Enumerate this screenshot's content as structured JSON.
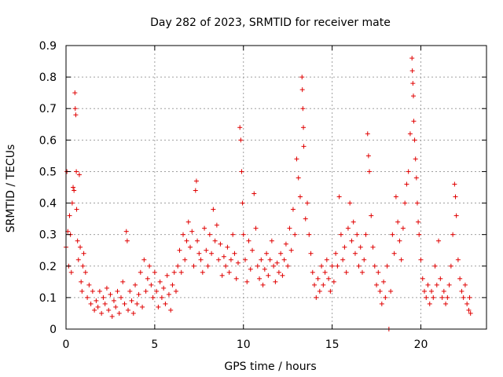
{
  "chart_data": {
    "type": "scatter",
    "title": "Day 282 of 2023, SRMTID for receiver mate",
    "xlabel": "GPS time / hours",
    "ylabel": "SRMTID / TECUs",
    "xlim": [
      0,
      23.7
    ],
    "ylim": [
      0,
      0.9
    ],
    "xticks": [
      0,
      5,
      10,
      15,
      20
    ],
    "yticks": [
      0,
      0.1,
      0.2,
      0.3,
      0.4,
      0.5,
      0.6,
      0.7,
      0.8,
      0.9
    ],
    "xtick_labels": [
      "0",
      "5",
      "10",
      "15",
      "20"
    ],
    "ytick_labels": [
      "0",
      "0.1",
      "0.2",
      "0.3",
      "0.4",
      "0.5",
      "0.6",
      "0.7",
      "0.8",
      "0.9"
    ],
    "grid": true,
    "marker": "+",
    "color": "#e00000",
    "series": [
      {
        "name": "SRMTID",
        "points": [
          [
            0.0,
            0.26
          ],
          [
            0.05,
            0.5
          ],
          [
            0.1,
            0.31
          ],
          [
            0.15,
            0.2
          ],
          [
            0.2,
            0.36
          ],
          [
            0.25,
            0.3
          ],
          [
            0.3,
            0.18
          ],
          [
            0.35,
            0.4
          ],
          [
            0.4,
            0.45
          ],
          [
            0.45,
            0.44
          ],
          [
            0.5,
            0.75
          ],
          [
            0.52,
            0.7
          ],
          [
            0.55,
            0.68
          ],
          [
            0.58,
            0.5
          ],
          [
            0.6,
            0.38
          ],
          [
            0.65,
            0.28
          ],
          [
            0.7,
            0.22
          ],
          [
            0.75,
            0.49
          ],
          [
            0.8,
            0.26
          ],
          [
            0.85,
            0.15
          ],
          [
            0.9,
            0.12
          ],
          [
            0.95,
            0.2
          ],
          [
            1.0,
            0.24
          ],
          [
            1.1,
            0.18
          ],
          [
            1.2,
            0.1
          ],
          [
            1.3,
            0.14
          ],
          [
            1.4,
            0.08
          ],
          [
            1.5,
            0.12
          ],
          [
            1.6,
            0.06
          ],
          [
            1.7,
            0.09
          ],
          [
            1.8,
            0.07
          ],
          [
            1.9,
            0.12
          ],
          [
            2.0,
            0.05
          ],
          [
            2.1,
            0.1
          ],
          [
            2.2,
            0.08
          ],
          [
            2.3,
            0.13
          ],
          [
            2.4,
            0.06
          ],
          [
            2.5,
            0.11
          ],
          [
            2.6,
            0.04
          ],
          [
            2.7,
            0.09
          ],
          [
            2.8,
            0.07
          ],
          [
            2.9,
            0.12
          ],
          [
            3.0,
            0.05
          ],
          [
            3.1,
            0.1
          ],
          [
            3.2,
            0.15
          ],
          [
            3.3,
            0.08
          ],
          [
            3.4,
            0.31
          ],
          [
            3.45,
            0.28
          ],
          [
            3.5,
            0.06
          ],
          [
            3.6,
            0.12
          ],
          [
            3.7,
            0.09
          ],
          [
            3.8,
            0.05
          ],
          [
            3.9,
            0.14
          ],
          [
            4.0,
            0.08
          ],
          [
            4.1,
            0.11
          ],
          [
            4.2,
            0.18
          ],
          [
            4.3,
            0.07
          ],
          [
            4.4,
            0.22
          ],
          [
            4.5,
            0.12
          ],
          [
            4.6,
            0.16
          ],
          [
            4.7,
            0.2
          ],
          [
            4.8,
            0.14
          ],
          [
            4.9,
            0.1
          ],
          [
            5.0,
            0.18
          ],
          [
            5.1,
            0.12
          ],
          [
            5.2,
            0.07
          ],
          [
            5.3,
            0.15
          ],
          [
            5.4,
            0.1
          ],
          [
            5.5,
            0.13
          ],
          [
            5.6,
            0.08
          ],
          [
            5.7,
            0.17
          ],
          [
            5.8,
            0.11
          ],
          [
            5.9,
            0.06
          ],
          [
            6.0,
            0.14
          ],
          [
            6.1,
            0.18
          ],
          [
            6.2,
            0.12
          ],
          [
            6.3,
            0.2
          ],
          [
            6.4,
            0.25
          ],
          [
            6.5,
            0.18
          ],
          [
            6.6,
            0.3
          ],
          [
            6.7,
            0.22
          ],
          [
            6.8,
            0.28
          ],
          [
            6.9,
            0.34
          ],
          [
            7.0,
            0.26
          ],
          [
            7.1,
            0.31
          ],
          [
            7.2,
            0.2
          ],
          [
            7.3,
            0.44
          ],
          [
            7.35,
            0.47
          ],
          [
            7.4,
            0.28
          ],
          [
            7.5,
            0.24
          ],
          [
            7.6,
            0.22
          ],
          [
            7.7,
            0.18
          ],
          [
            7.8,
            0.32
          ],
          [
            7.9,
            0.25
          ],
          [
            8.0,
            0.2
          ],
          [
            8.1,
            0.3
          ],
          [
            8.2,
            0.24
          ],
          [
            8.3,
            0.38
          ],
          [
            8.4,
            0.28
          ],
          [
            8.5,
            0.33
          ],
          [
            8.6,
            0.22
          ],
          [
            8.7,
            0.27
          ],
          [
            8.8,
            0.17
          ],
          [
            8.9,
            0.23
          ],
          [
            9.0,
            0.2
          ],
          [
            9.1,
            0.26
          ],
          [
            9.2,
            0.18
          ],
          [
            9.3,
            0.22
          ],
          [
            9.4,
            0.3
          ],
          [
            9.5,
            0.24
          ],
          [
            9.6,
            0.16
          ],
          [
            9.7,
            0.21
          ],
          [
            9.8,
            0.64
          ],
          [
            9.85,
            0.6
          ],
          [
            9.9,
            0.5
          ],
          [
            9.95,
            0.4
          ],
          [
            10.0,
            0.3
          ],
          [
            10.1,
            0.22
          ],
          [
            10.2,
            0.15
          ],
          [
            10.3,
            0.28
          ],
          [
            10.4,
            0.19
          ],
          [
            10.5,
            0.25
          ],
          [
            10.6,
            0.43
          ],
          [
            10.7,
            0.32
          ],
          [
            10.8,
            0.2
          ],
          [
            10.9,
            0.16
          ],
          [
            11.0,
            0.22
          ],
          [
            11.1,
            0.14
          ],
          [
            11.2,
            0.19
          ],
          [
            11.3,
            0.24
          ],
          [
            11.4,
            0.17
          ],
          [
            11.5,
            0.22
          ],
          [
            11.6,
            0.28
          ],
          [
            11.7,
            0.2
          ],
          [
            11.8,
            0.15
          ],
          [
            11.9,
            0.21
          ],
          [
            12.0,
            0.18
          ],
          [
            12.1,
            0.24
          ],
          [
            12.2,
            0.17
          ],
          [
            12.3,
            0.22
          ],
          [
            12.4,
            0.27
          ],
          [
            12.5,
            0.2
          ],
          [
            12.6,
            0.32
          ],
          [
            12.7,
            0.25
          ],
          [
            12.8,
            0.38
          ],
          [
            12.9,
            0.3
          ],
          [
            13.0,
            0.54
          ],
          [
            13.1,
            0.48
          ],
          [
            13.2,
            0.42
          ],
          [
            13.3,
            0.8
          ],
          [
            13.32,
            0.76
          ],
          [
            13.35,
            0.7
          ],
          [
            13.38,
            0.64
          ],
          [
            13.4,
            0.58
          ],
          [
            13.5,
            0.35
          ],
          [
            13.6,
            0.4
          ],
          [
            13.7,
            0.3
          ],
          [
            13.8,
            0.24
          ],
          [
            13.9,
            0.18
          ],
          [
            14.0,
            0.14
          ],
          [
            14.1,
            0.1
          ],
          [
            14.2,
            0.16
          ],
          [
            14.3,
            0.12
          ],
          [
            14.4,
            0.2
          ],
          [
            14.5,
            0.14
          ],
          [
            14.6,
            0.18
          ],
          [
            14.7,
            0.22
          ],
          [
            14.8,
            0.16
          ],
          [
            14.9,
            0.12
          ],
          [
            15.0,
            0.2
          ],
          [
            15.1,
            0.15
          ],
          [
            15.2,
            0.24
          ],
          [
            15.3,
            0.2
          ],
          [
            15.4,
            0.42
          ],
          [
            15.5,
            0.3
          ],
          [
            15.6,
            0.22
          ],
          [
            15.7,
            0.26
          ],
          [
            15.8,
            0.18
          ],
          [
            15.9,
            0.32
          ],
          [
            16.0,
            0.4
          ],
          [
            16.1,
            0.28
          ],
          [
            16.2,
            0.34
          ],
          [
            16.3,
            0.24
          ],
          [
            16.4,
            0.3
          ],
          [
            16.5,
            0.2
          ],
          [
            16.6,
            0.26
          ],
          [
            16.7,
            0.18
          ],
          [
            16.8,
            0.22
          ],
          [
            16.9,
            0.3
          ],
          [
            17.0,
            0.62
          ],
          [
            17.05,
            0.55
          ],
          [
            17.1,
            0.5
          ],
          [
            17.2,
            0.36
          ],
          [
            17.3,
            0.26
          ],
          [
            17.4,
            0.2
          ],
          [
            17.5,
            0.14
          ],
          [
            17.6,
            0.18
          ],
          [
            17.7,
            0.12
          ],
          [
            17.8,
            0.08
          ],
          [
            17.9,
            0.15
          ],
          [
            18.0,
            0.1
          ],
          [
            18.1,
            0.2
          ],
          [
            18.2,
            0.0
          ],
          [
            18.3,
            0.12
          ],
          [
            18.4,
            0.3
          ],
          [
            18.5,
            0.24
          ],
          [
            18.6,
            0.42
          ],
          [
            18.7,
            0.34
          ],
          [
            18.8,
            0.28
          ],
          [
            18.9,
            0.22
          ],
          [
            19.0,
            0.32
          ],
          [
            19.1,
            0.4
          ],
          [
            19.2,
            0.46
          ],
          [
            19.3,
            0.5
          ],
          [
            19.4,
            0.62
          ],
          [
            19.5,
            0.86
          ],
          [
            19.52,
            0.82
          ],
          [
            19.55,
            0.78
          ],
          [
            19.58,
            0.74
          ],
          [
            19.6,
            0.66
          ],
          [
            19.65,
            0.6
          ],
          [
            19.7,
            0.54
          ],
          [
            19.75,
            0.48
          ],
          [
            19.8,
            0.4
          ],
          [
            19.85,
            0.34
          ],
          [
            19.9,
            0.3
          ],
          [
            20.0,
            0.22
          ],
          [
            20.1,
            0.16
          ],
          [
            20.2,
            0.12
          ],
          [
            20.3,
            0.1
          ],
          [
            20.4,
            0.14
          ],
          [
            20.5,
            0.08
          ],
          [
            20.6,
            0.12
          ],
          [
            20.7,
            0.1
          ],
          [
            20.8,
            0.2
          ],
          [
            20.9,
            0.14
          ],
          [
            21.0,
            0.28
          ],
          [
            21.1,
            0.16
          ],
          [
            21.2,
            0.1
          ],
          [
            21.3,
            0.12
          ],
          [
            21.4,
            0.08
          ],
          [
            21.5,
            0.1
          ],
          [
            21.6,
            0.14
          ],
          [
            21.7,
            0.2
          ],
          [
            21.8,
            0.3
          ],
          [
            21.9,
            0.46
          ],
          [
            21.95,
            0.42
          ],
          [
            22.0,
            0.36
          ],
          [
            22.1,
            0.22
          ],
          [
            22.2,
            0.16
          ],
          [
            22.3,
            0.12
          ],
          [
            22.4,
            0.1
          ],
          [
            22.5,
            0.14
          ],
          [
            22.6,
            0.08
          ],
          [
            22.7,
            0.06
          ],
          [
            22.75,
            0.1
          ],
          [
            22.8,
            0.05
          ]
        ]
      }
    ]
  }
}
